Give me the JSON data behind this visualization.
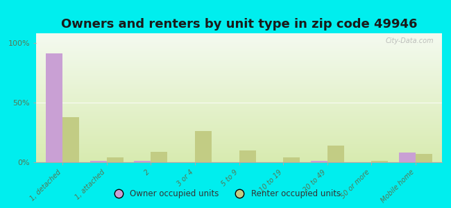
{
  "title": "Owners and renters by unit type in zip code 49946",
  "categories": [
    "1, detached",
    "1, attached",
    "2",
    "3 or 4",
    "5 to 9",
    "10 to 19",
    "20 to 49",
    "50 or more",
    "Mobile home"
  ],
  "owner_values": [
    91,
    1,
    1,
    0,
    0,
    0,
    1,
    0,
    8
  ],
  "renter_values": [
    38,
    4,
    9,
    26,
    10,
    4,
    14,
    1,
    7
  ],
  "owner_color": "#c9a0d4",
  "renter_color": "#c2cc84",
  "bg_color": "#00eeee",
  "ylabel_ticks": [
    "0%",
    "50%",
    "100%"
  ],
  "ytick_vals": [
    0,
    50,
    100
  ],
  "ylim": [
    0,
    108
  ],
  "bar_width": 0.38,
  "title_fontsize": 13,
  "watermark": "City-Data.com",
  "legend_owner": "Owner occupied units",
  "legend_renter": "Renter occupied units",
  "grad_top_color": "#f0f8e8",
  "grad_bottom_color": "#e8f4cc"
}
